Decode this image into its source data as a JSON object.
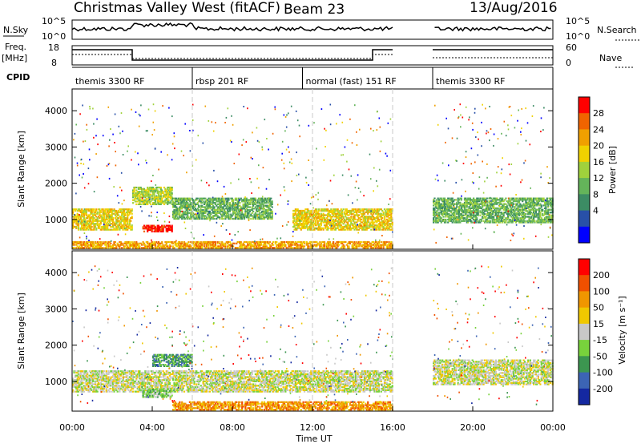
{
  "header": {
    "title": "Christmas Valley West (fitACF)",
    "beam": "Beam 23",
    "date": "13/Aug/2016"
  },
  "top_panels": {
    "nsky_label": "N.Sky",
    "nsky_ticks": [
      "10^5",
      "10^0"
    ],
    "nsearch_label": "N.Search",
    "nsearch_ticks": [
      "10^5",
      "10^0"
    ],
    "freq_label_1": "Freq.",
    "freq_label_2": "[MHz]",
    "freq_ticks": [
      "18",
      "8"
    ],
    "nave_label": "Nave",
    "nave_ticks": [
      "60",
      "0"
    ],
    "cpid_label": "CPID",
    "cpid_segments": [
      {
        "label": "themis 3300 RF",
        "start": 0,
        "end": 6
      },
      {
        "label": "rbsp 201 RF",
        "start": 6,
        "end": 11.5
      },
      {
        "label": "normal (fast) 151 RF",
        "start": 11.5,
        "end": 16
      },
      {
        "label": "themis 3300 RF",
        "start": 18,
        "end": 24
      }
    ]
  },
  "chart_data": [
    {
      "type": "heatmap",
      "name": "power",
      "ylabel": "Slant Range [km]",
      "ylim": [
        180,
        4600
      ],
      "yticks": [
        "1000",
        "2000",
        "3000",
        "4000"
      ],
      "colorbar_label": "Power [dB]",
      "colorbar_ticks": [
        "4",
        "8",
        "12",
        "16",
        "20",
        "24",
        "28"
      ],
      "colors": [
        "#0000ff",
        "#2850a8",
        "#3c8c64",
        "#64b45a",
        "#a0d23c",
        "#f0d200",
        "#f0a000",
        "#f06400",
        "#ff0000"
      ],
      "data_gap_hours": [
        16,
        18
      ],
      "echo_regions": [
        {
          "t0": 0,
          "t1": 3,
          "r0": 700,
          "r1": 1300,
          "level": 5
        },
        {
          "t0": 3,
          "t1": 5,
          "r0": 1400,
          "r1": 1900,
          "level": 4
        },
        {
          "t0": 3.5,
          "t1": 5,
          "r0": 650,
          "r1": 850,
          "level": 8
        },
        {
          "t0": 5,
          "t1": 10,
          "r0": 1000,
          "r1": 1600,
          "level": 3
        },
        {
          "t0": 0,
          "t1": 16,
          "r0": 200,
          "r1": 400,
          "level": 6
        },
        {
          "t0": 11,
          "t1": 16,
          "r0": 700,
          "r1": 1300,
          "level": 5
        },
        {
          "t0": 18,
          "t1": 24,
          "r0": 900,
          "r1": 1600,
          "level": 3
        }
      ]
    },
    {
      "type": "heatmap",
      "name": "velocity",
      "xlabel": "Time UT",
      "ylabel": "Slant Range [km]",
      "ylim": [
        180,
        4600
      ],
      "yticks": [
        "1000",
        "2000",
        "3000",
        "4000"
      ],
      "xticks": [
        "00:00",
        "04:00",
        "08:00",
        "12:00",
        "16:00",
        "20:00",
        "00:00"
      ],
      "colorbar_label": "Velocity [m s⁻¹]",
      "colorbar_ticks": [
        "200",
        "100",
        "50",
        "15",
        "-15",
        "-50",
        "-100",
        "-200"
      ],
      "colors": [
        "#1428a0",
        "#3c64b4",
        "#3c9650",
        "#78d23c",
        "#c8c8c8",
        "#f0c800",
        "#f09600",
        "#f05000",
        "#ff0000"
      ],
      "data_gap_hours": [
        16,
        18
      ],
      "echo_regions": [
        {
          "t0": 0,
          "t1": 16,
          "r0": 700,
          "r1": 1300,
          "level": 4
        },
        {
          "t0": 3.5,
          "t1": 5,
          "r0": 550,
          "r1": 800,
          "level": 3
        },
        {
          "t0": 4,
          "t1": 6,
          "r0": 1400,
          "r1": 1750,
          "level": 2
        },
        {
          "t0": 5,
          "t1": 16,
          "r0": 200,
          "r1": 450,
          "level": 6
        },
        {
          "t0": 18,
          "t1": 24,
          "r0": 900,
          "r1": 1600,
          "level": 4
        }
      ]
    }
  ]
}
